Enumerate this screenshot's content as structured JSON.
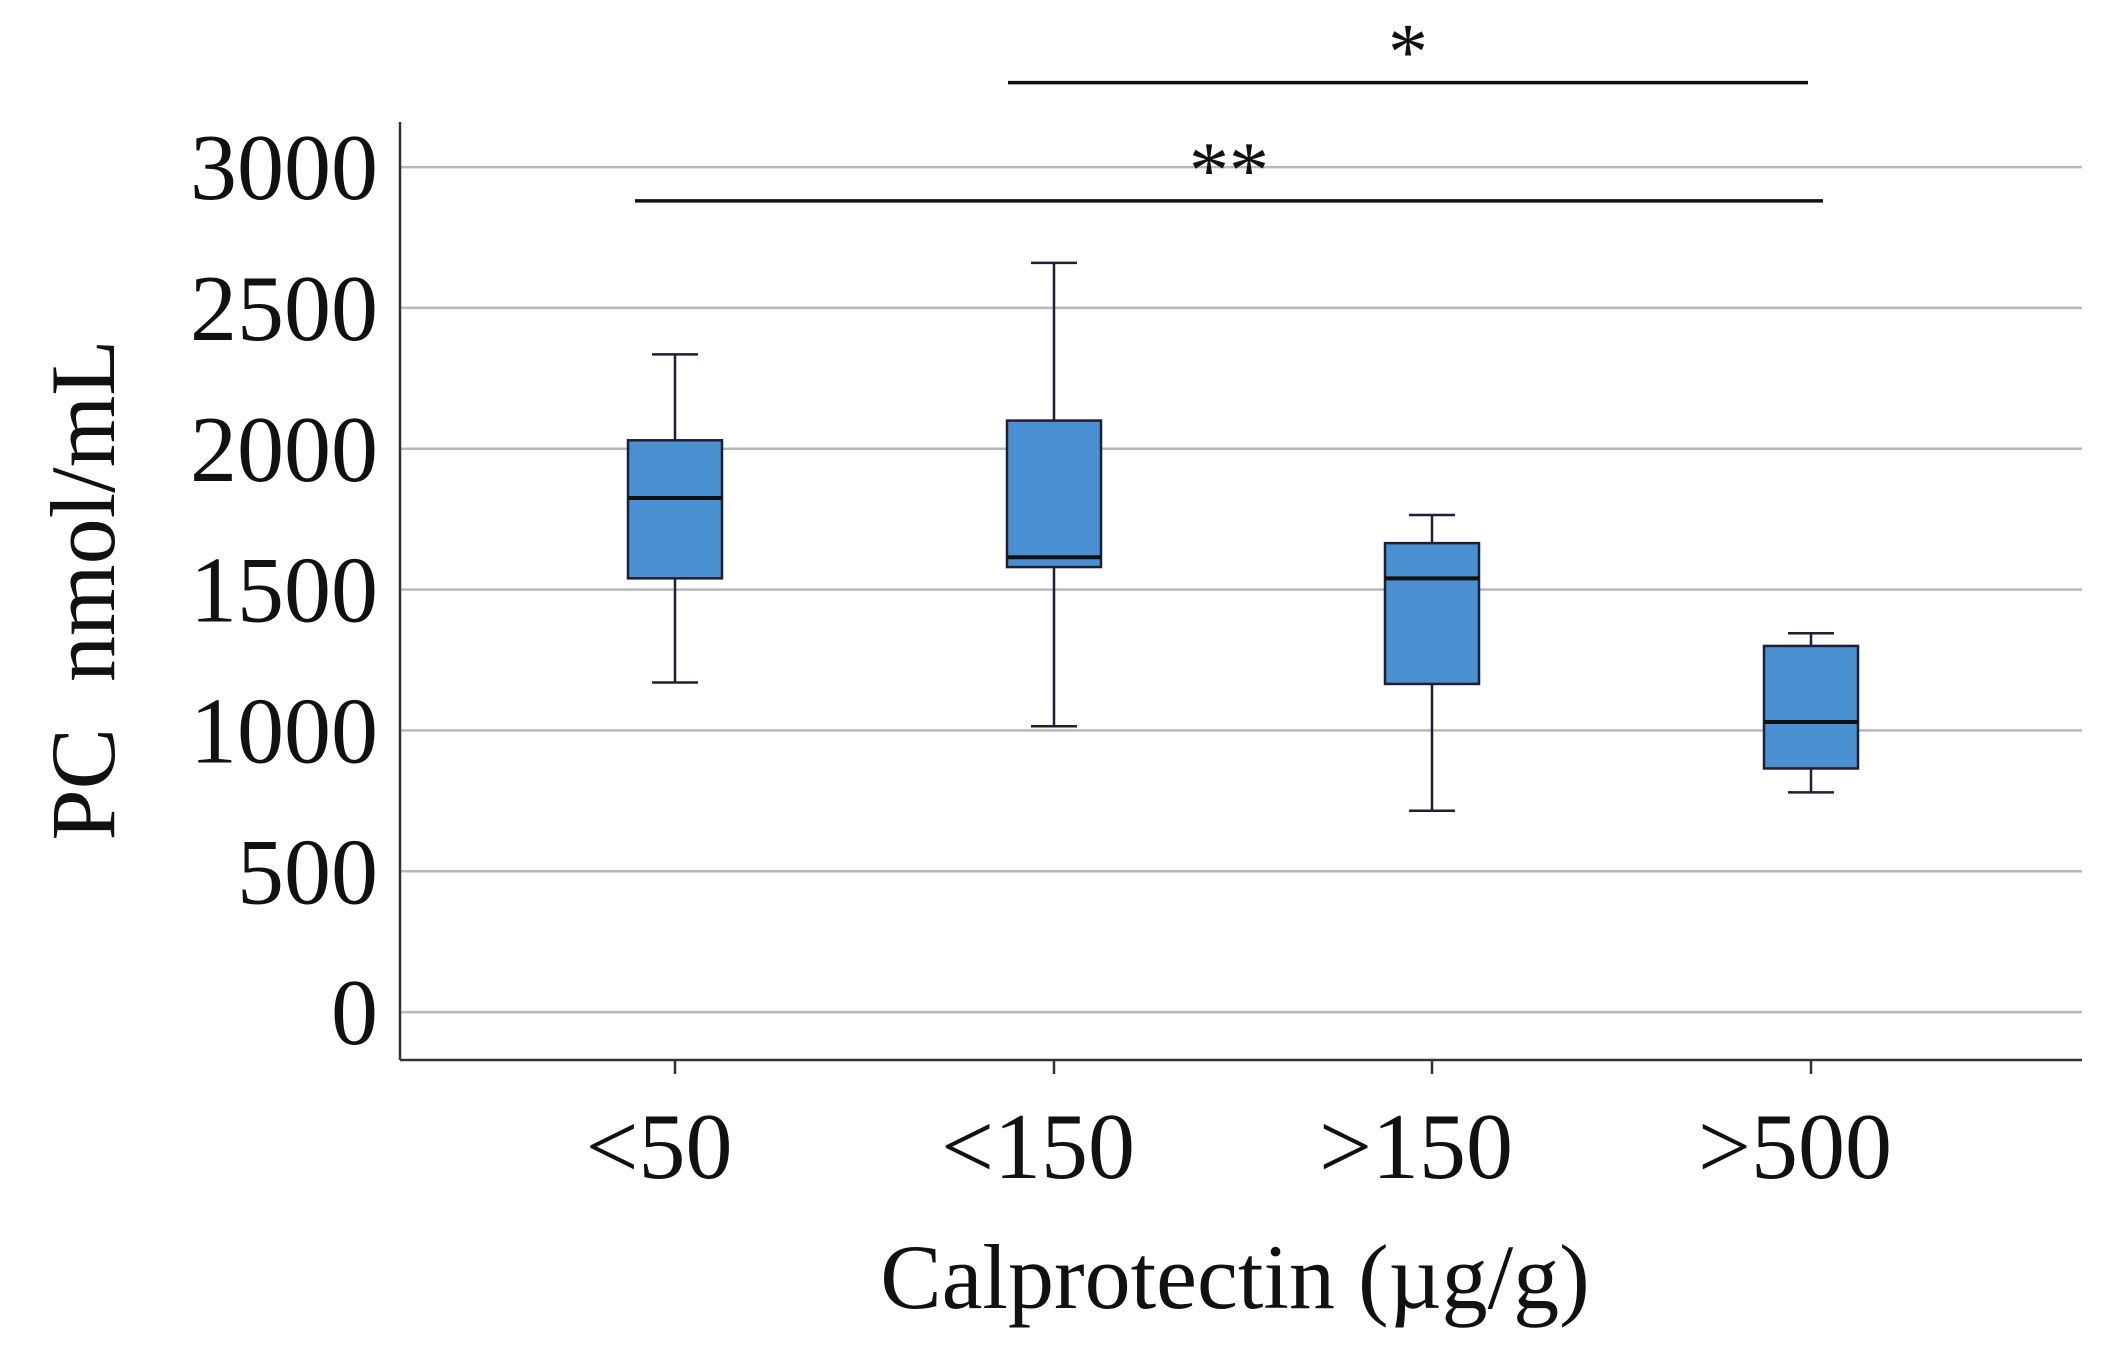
{
  "chart_data": {
    "type": "box",
    "title": "",
    "xlabel": "Calprotectin (µg/g)",
    "ylabel": "PC  nmol/mL",
    "ylim": [
      -170,
      3160
    ],
    "yticks": [
      0,
      500,
      1000,
      1500,
      2000,
      2500,
      3000
    ],
    "ytick_labels": [
      "0",
      "500",
      "1000",
      "1500",
      "2000",
      "2500",
      "3000"
    ],
    "grid": true,
    "categories": [
      "<50",
      "<150",
      ">150",
      ">500"
    ],
    "boxes": [
      {
        "category": "<50",
        "whisker_low": 1170,
        "q1": 1540,
        "median": 1825,
        "q3": 2030,
        "whisker_high": 2335
      },
      {
        "category": "<150",
        "whisker_low": 1015,
        "q1": 1580,
        "median": 1615,
        "q3": 2100,
        "whisker_high": 2660
      },
      {
        "category": ">150",
        "whisker_low": 715,
        "q1": 1165,
        "median": 1540,
        "q3": 1665,
        "whisker_high": 1765
      },
      {
        "category": ">500",
        "whisker_low": 780,
        "q1": 865,
        "median": 1030,
        "q3": 1300,
        "whisker_high": 1345
      }
    ],
    "significance": [
      {
        "label": "*",
        "from": "<150",
        "to": ">500",
        "y_value": 3300
      },
      {
        "label": "**",
        "from": "<50",
        "to": ">500",
        "y_value": 2880
      }
    ],
    "colors": {
      "box_fill": "#4a90d0",
      "box_edge": "#1e1e34",
      "grid": "#b9b9b9",
      "axis": "#333333"
    }
  }
}
